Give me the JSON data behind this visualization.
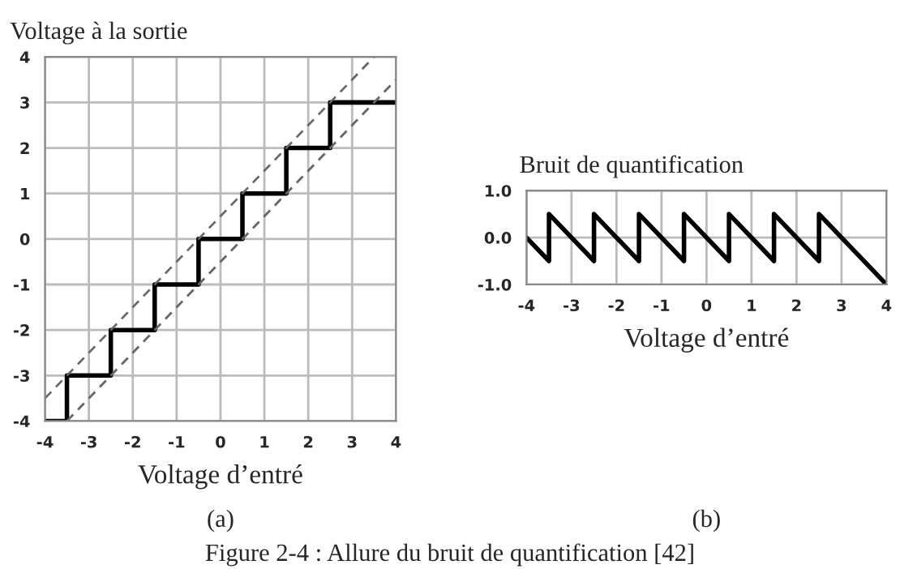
{
  "chart_data": [
    {
      "type": "line",
      "title": "Voltage à la sortie",
      "xlabel": "Voltage d’entré",
      "xlim": [
        -4,
        4
      ],
      "ylim": [
        -4,
        4
      ],
      "xticks": [
        -4,
        -3,
        -2,
        -1,
        0,
        1,
        2,
        3,
        4
      ],
      "yticks": [
        -4,
        -3,
        -2,
        -1,
        0,
        1,
        2,
        3,
        4
      ],
      "grid": true,
      "series": [
        {
          "type": "step",
          "color": "#000000",
          "x": [
            -4,
            -3.5,
            -2.5,
            -1.5,
            -0.5,
            0.5,
            1.5,
            2.5,
            4
          ],
          "values": [
            -4,
            -3,
            -2,
            -1,
            0,
            1,
            2,
            3,
            3
          ]
        },
        {
          "line_style": "dashed",
          "color": "#666666",
          "x": [
            -4,
            3.5
          ],
          "values": [
            -3.5,
            4
          ]
        },
        {
          "line_style": "dashed",
          "color": "#666666",
          "x": [
            -3.5,
            4
          ],
          "values": [
            -4,
            3.5
          ]
        }
      ],
      "annotations": [
        "(a)",
        "Figure 2-4 : Allure du bruit de quantification [42]"
      ]
    },
    {
      "type": "line",
      "title": "Bruit de quantification",
      "xlabel": "Voltage d’entré",
      "xlim": [
        -4,
        4
      ],
      "ylim": [
        -1,
        1
      ],
      "xticks": [
        -4,
        -3,
        -2,
        -1,
        0,
        1,
        2,
        3,
        4
      ],
      "yticks": [
        {
          "value": -1,
          "label": "-1.0"
        },
        {
          "value": 0,
          "label": "0.0"
        },
        {
          "value": 1,
          "label": "1.0"
        }
      ],
      "grid": true,
      "series": [
        {
          "color": "#000000",
          "x": [
            -4,
            -3.5,
            -3.5,
            -2.5,
            -2.5,
            -1.5,
            -1.5,
            -0.5,
            -0.5,
            0.5,
            0.5,
            1.5,
            1.5,
            2.5,
            2.5,
            4
          ],
          "values": [
            0,
            -0.5,
            0.5,
            -0.5,
            0.5,
            -0.5,
            0.5,
            -0.5,
            0.5,
            -0.5,
            0.5,
            -0.5,
            0.5,
            -0.5,
            0.5,
            -1
          ]
        }
      ],
      "annotations": [
        "(b)"
      ]
    }
  ]
}
